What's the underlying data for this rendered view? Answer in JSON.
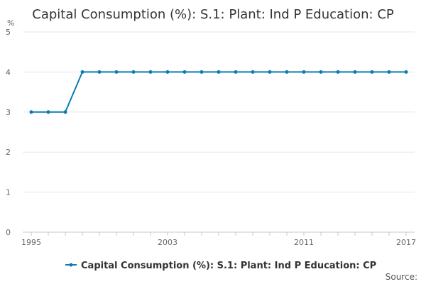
{
  "chart_data": {
    "type": "line",
    "title": "Capital Consumption (%): S.1: Plant: Ind P Education: CP",
    "ylabel": "%",
    "xlabel": "",
    "x": [
      1995,
      1996,
      1997,
      1998,
      1999,
      2000,
      2001,
      2002,
      2003,
      2004,
      2005,
      2006,
      2007,
      2008,
      2009,
      2010,
      2011,
      2012,
      2013,
      2014,
      2015,
      2016,
      2017
    ],
    "series": [
      {
        "name": "Capital Consumption (%): S.1: Plant: Ind P Education: CP",
        "values": [
          3,
          3,
          3,
          4,
          4,
          4,
          4,
          4,
          4,
          4,
          4,
          4,
          4,
          4,
          4,
          4,
          4,
          4,
          4,
          4,
          4,
          4,
          4
        ],
        "color": "#0b7db3"
      }
    ],
    "ylim": [
      0,
      5
    ],
    "xlim": [
      1995,
      2017
    ],
    "yticks": [
      "0",
      "1",
      "2",
      "3",
      "4",
      "5"
    ],
    "xtick_labels": [
      "1995",
      "2003",
      "2011",
      "2017"
    ],
    "grid": "horizontal",
    "legend": "bottom",
    "source_label": "Source:"
  }
}
